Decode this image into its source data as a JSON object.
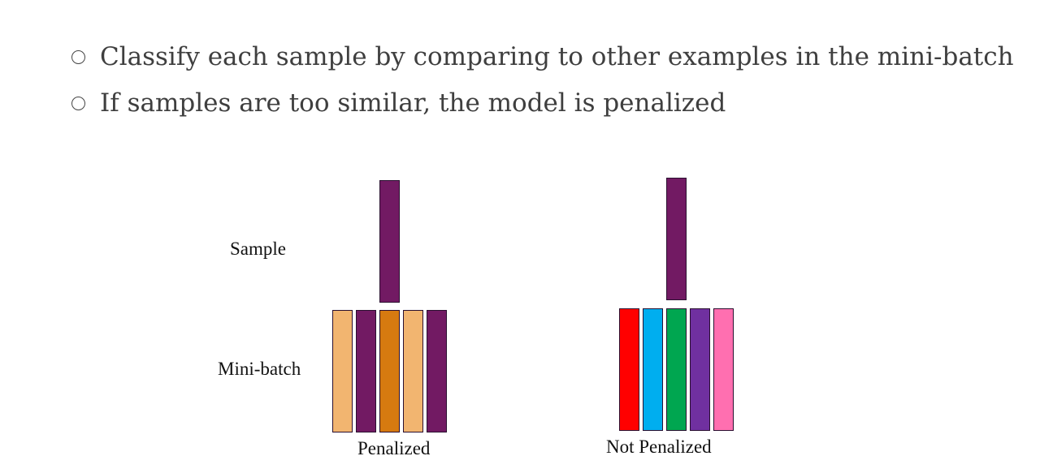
{
  "bullets": [
    {
      "text": "Classify each sample by comparing to other examples in the mini-batch"
    },
    {
      "text": "If samples are too similar, the model is penalized"
    }
  ],
  "labels": {
    "sample": "Sample",
    "minibatch": "Mini-batch",
    "penalized": "Penalized",
    "not_penalized": "Not Penalized"
  },
  "groups": [
    {
      "name": "penalized",
      "sample_color": "#721a63",
      "minibatch_colors": [
        "#f2b570",
        "#721a63",
        "#d67a10",
        "#f2b570",
        "#721a63"
      ]
    },
    {
      "name": "not-penalized",
      "sample_color": "#721a63",
      "minibatch_colors": [
        "#ff0000",
        "#00aeef",
        "#00a650",
        "#7030a0",
        "#ff6fb0"
      ]
    }
  ]
}
